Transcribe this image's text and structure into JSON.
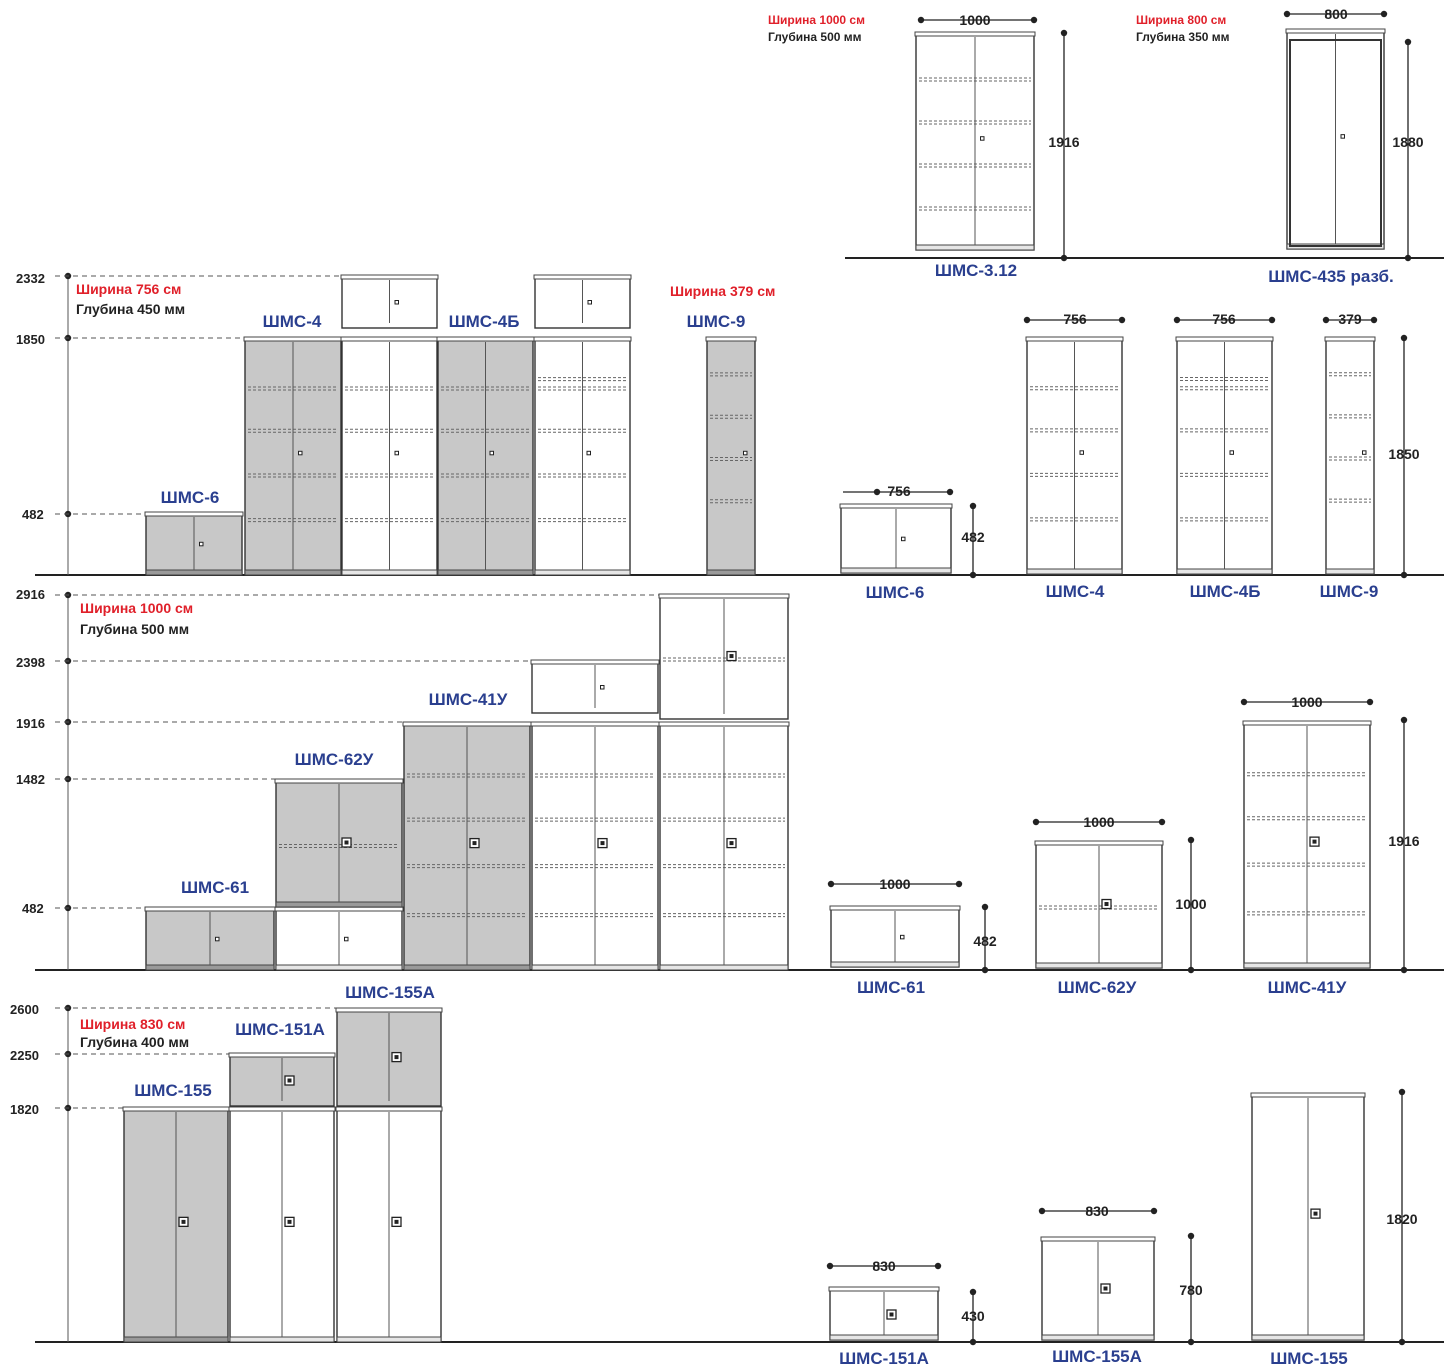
{
  "colors": {
    "model": "#2a3f8f",
    "note": "#e0202a",
    "grey_fill": "#c8c8c8",
    "line": "#222222"
  },
  "top_group": {
    "shms312": {
      "note_width": "Ширина 1000 см",
      "note_depth": "Глубина 500 мм",
      "width": "1000",
      "height": "1916",
      "model": "ШМС-3.12"
    },
    "shms435": {
      "note_width": "Ширина 800 см",
      "note_depth": "Глубина 350 мм",
      "width": "800",
      "height": "1880",
      "model": "ШМС-435 разб."
    }
  },
  "group1": {
    "ticks": [
      "2332",
      "1850",
      "482"
    ],
    "note_width": "Ширина 756 см",
    "note_depth": "Глубина 450 мм",
    "note_width_b": "Ширина 379 см",
    "labels": {
      "shms4": "ШМС-4",
      "shms4b": "ШМС-4Б",
      "shms9": "ШМС-9",
      "shms6": "ШМС-6"
    },
    "side": {
      "shms6": {
        "width": "756",
        "height": "482",
        "model": "ШМС-6"
      },
      "shms4": {
        "width": "756",
        "model": "ШМС-4"
      },
      "shms4b": {
        "width": "756",
        "model": "ШМС-4Б"
      },
      "shms9": {
        "width": "379",
        "height": "1850",
        "model": "ШМС-9"
      }
    }
  },
  "group2": {
    "ticks": [
      "2916",
      "2398",
      "1916",
      "1482",
      "482"
    ],
    "note_width": "Ширина 1000 см",
    "note_depth": "Глубина 500 мм",
    "labels": {
      "shms41u": "ШМС-41У",
      "shms62u": "ШМС-62У",
      "shms61": "ШМС-61"
    },
    "side": {
      "shms61": {
        "width": "1000",
        "height": "482",
        "model": "ШМС-61"
      },
      "shms62u": {
        "width": "1000",
        "height": "1000",
        "model": "ШМС-62У"
      },
      "shms41u": {
        "width": "1000",
        "height": "1916",
        "model": "ШМС-41У"
      }
    }
  },
  "group3": {
    "ticks": [
      "2600",
      "2250",
      "1820"
    ],
    "note_width": "Ширина 830 см",
    "note_depth": "Глубина 400 мм",
    "labels": {
      "shms155a": "ШМС-155А",
      "shms151a": "ШМС-151А",
      "shms155": "ШМС-155"
    },
    "side": {
      "shms151a": {
        "width": "830",
        "height": "430",
        "model": "ШМС-151А"
      },
      "shms155a": {
        "width": "830",
        "height": "780",
        "model": "ШМС-155А"
      },
      "shms155": {
        "height": "1820",
        "model": "ШМС-155"
      }
    }
  }
}
